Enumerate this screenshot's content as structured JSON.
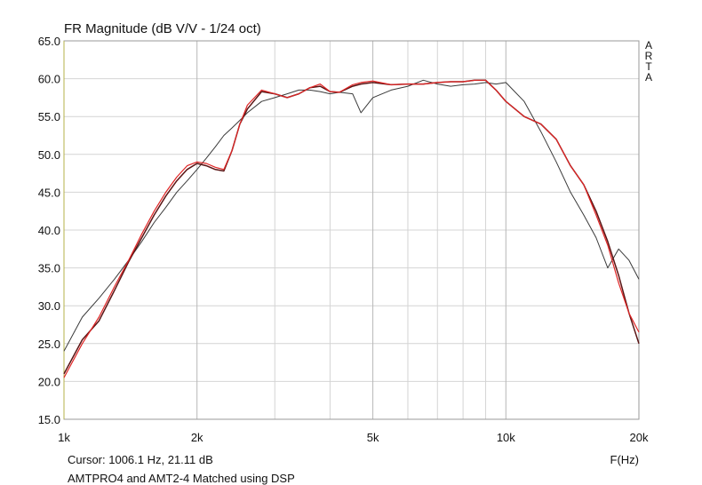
{
  "chart_data": {
    "type": "line",
    "title": "FR Magnitude (dB V/V - 1/24 oct)",
    "brand": "ARTA",
    "cursor": "Cursor: 1006.1 Hz, 21.11 dB",
    "x_label": "F(Hz)",
    "caption": "AMTPRO4 and AMT2-4 Matched using DSP",
    "log_x": true,
    "grid": true,
    "xlim": [
      1000,
      20000
    ],
    "ylim": [
      15,
      65
    ],
    "xticks": [
      {
        "value": 1000,
        "label": "1k"
      },
      {
        "value": 2000,
        "label": "2k"
      },
      {
        "value": 5000,
        "label": "5k"
      },
      {
        "value": 10000,
        "label": "10k"
      },
      {
        "value": 20000,
        "label": "20k"
      }
    ],
    "xgrid_minor": [
      3000,
      4000,
      6000,
      7000,
      8000,
      9000
    ],
    "yticks": [
      {
        "value": 15,
        "label": "15.0"
      },
      {
        "value": 20,
        "label": "20.0"
      },
      {
        "value": 25,
        "label": "25.0"
      },
      {
        "value": 30,
        "label": "30.0"
      },
      {
        "value": 35,
        "label": "35.0"
      },
      {
        "value": 40,
        "label": "40.0"
      },
      {
        "value": 45,
        "label": "45.0"
      },
      {
        "value": 50,
        "label": "50.0"
      },
      {
        "value": 55,
        "label": "55.0"
      },
      {
        "value": 60,
        "label": "60.0"
      },
      {
        "value": 65,
        "label": "65.0"
      }
    ],
    "x": [
      1000,
      1100,
      1200,
      1300,
      1400,
      1500,
      1600,
      1700,
      1800,
      1900,
      2000,
      2100,
      2200,
      2300,
      2400,
      2500,
      2600,
      2800,
      3000,
      3200,
      3400,
      3600,
      3800,
      4000,
      4200,
      4500,
      4700,
      5000,
      5500,
      6000,
      6500,
      7000,
      7500,
      8000,
      8500,
      9000,
      9500,
      10000,
      11000,
      12000,
      13000,
      14000,
      15000,
      16000,
      17000,
      18000,
      19000,
      20000
    ],
    "series": [
      {
        "color": "#3a3a3a",
        "width": 1,
        "values": [
          24,
          28.5,
          31,
          33.5,
          36,
          38.5,
          41,
          43,
          45,
          46.5,
          48,
          49.5,
          51,
          52.5,
          53.5,
          54.5,
          55.5,
          57,
          57.5,
          58,
          58.5,
          58.5,
          58.3,
          58,
          58.2,
          58,
          55.5,
          57.5,
          58.5,
          59,
          59.8,
          59.3,
          59,
          59.2,
          59.3,
          59.5,
          59.3,
          59.5,
          57,
          53,
          49,
          45,
          42,
          39,
          35,
          37.5,
          36,
          33.5
        ]
      },
      {
        "color": "#5a1414",
        "width": 1.5,
        "values": [
          21,
          25.5,
          28,
          32,
          35.8,
          39,
          42,
          44.5,
          46.5,
          48,
          48.8,
          48.5,
          48,
          47.8,
          50.5,
          54,
          56,
          58.3,
          58,
          57.5,
          58,
          58.8,
          59,
          58.3,
          58.2,
          59,
          59.3,
          59.5,
          59.2,
          59.3,
          59.3,
          59.5,
          59.6,
          59.6,
          59.8,
          59.8,
          58.5,
          57,
          55,
          54,
          52,
          48.5,
          46,
          42.5,
          38.5,
          34,
          29,
          25
        ]
      },
      {
        "color": "#e02424",
        "width": 1.2,
        "values": [
          20.5,
          25,
          28.5,
          32.5,
          36,
          39.5,
          42.5,
          45,
          47,
          48.5,
          49,
          48.8,
          48.3,
          48,
          50.5,
          54,
          56.5,
          58.5,
          58,
          57.5,
          58,
          58.8,
          59.3,
          58.3,
          58.2,
          59.2,
          59.5,
          59.7,
          59.2,
          59.3,
          59.3,
          59.5,
          59.6,
          59.6,
          59.8,
          59.8,
          58.5,
          57,
          55,
          54,
          52,
          48.5,
          46,
          42,
          38,
          33,
          29,
          26.5
        ]
      }
    ]
  }
}
